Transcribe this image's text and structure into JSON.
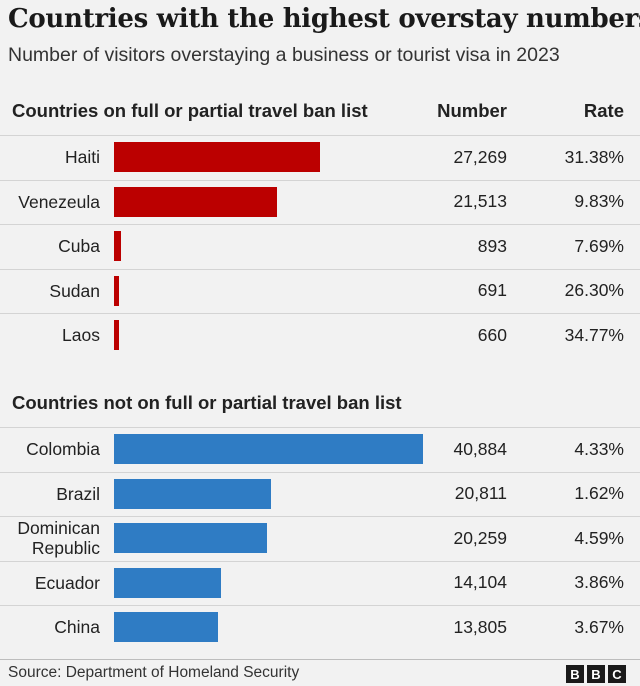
{
  "title": "Countries with the highest overstay numbers",
  "subtitle": "Number of visitors overstaying a business or tourist visa in 2023",
  "columns": {
    "number": "Number",
    "rate": "Rate"
  },
  "source": "Source: Department of Homeland Security",
  "logo": [
    "B",
    "B",
    "C"
  ],
  "colors": {
    "ban": "#bb0000",
    "noban": "#2f7cc4"
  },
  "chart_data": {
    "type": "bar",
    "orientation": "horizontal",
    "xlim": [
      0,
      40884
    ],
    "groups": [
      {
        "name": "Countries on full or partial travel ban list",
        "color": "#bb0000",
        "rows": [
          {
            "country": "Haiti",
            "number": 27269,
            "number_label": "27,269",
            "rate": "31.38%"
          },
          {
            "country": "Venezeula",
            "number": 21513,
            "number_label": "21,513",
            "rate": "9.83%"
          },
          {
            "country": "Cuba",
            "number": 893,
            "number_label": "893",
            "rate": "7.69%"
          },
          {
            "country": "Sudan",
            "number": 691,
            "number_label": "691",
            "rate": "26.30%"
          },
          {
            "country": "Laos",
            "number": 660,
            "number_label": "660",
            "rate": "34.77%"
          }
        ]
      },
      {
        "name": "Countries not on full or partial travel ban list",
        "color": "#2f7cc4",
        "rows": [
          {
            "country": "Colombia",
            "number": 40884,
            "number_label": "40,884",
            "rate": "4.33%"
          },
          {
            "country": "Brazil",
            "number": 20811,
            "number_label": "20,811",
            "rate": "1.62%"
          },
          {
            "country": "Dominican\nRepublic",
            "number": 20259,
            "number_label": "20,259",
            "rate": "4.59%"
          },
          {
            "country": "Ecuador",
            "number": 14104,
            "number_label": "14,104",
            "rate": "3.86%"
          },
          {
            "country": "China",
            "number": 13805,
            "number_label": "13,805",
            "rate": "3.67%"
          }
        ]
      }
    ]
  }
}
